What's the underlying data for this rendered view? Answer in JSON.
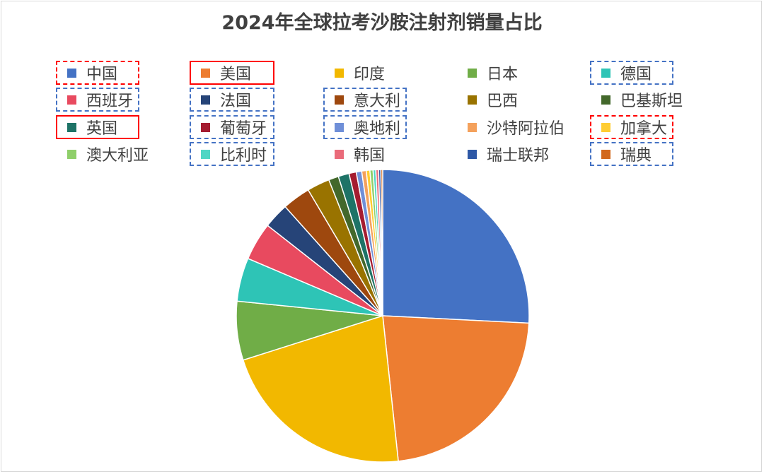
{
  "chart_data": {
    "type": "pie",
    "title": "2024年全球拉考沙胺注射剂销量占比",
    "legend_placement": "top",
    "start_angle": "12 o'clock, clockwise",
    "slices": [
      {
        "label": "中国",
        "value": 25.8,
        "color": "#4472C4",
        "highlight": "red-dashed"
      },
      {
        "label": "美国",
        "value": 22.5,
        "color": "#ED7D31",
        "highlight": "red-solid"
      },
      {
        "label": "印度",
        "value": 21.8,
        "color": "#F2B800",
        "highlight": ""
      },
      {
        "label": "日本",
        "value": 6.5,
        "color": "#70AD47",
        "highlight": ""
      },
      {
        "label": "德国",
        "value": 4.8,
        "color": "#2EC4B6",
        "highlight": "blue-dashed"
      },
      {
        "label": "西班牙",
        "value": 4.2,
        "color": "#E84A5F",
        "highlight": "blue-dashed"
      },
      {
        "label": "法国",
        "value": 2.8,
        "color": "#264478",
        "highlight": "blue-dashed"
      },
      {
        "label": "意大利",
        "value": 3.1,
        "color": "#9E480E",
        "highlight": "blue-dashed"
      },
      {
        "label": "巴西",
        "value": 2.5,
        "color": "#997300",
        "highlight": ""
      },
      {
        "label": "巴基斯坦",
        "value": 1.1,
        "color": "#43682B",
        "highlight": ""
      },
      {
        "label": "英国",
        "value": 1.2,
        "color": "#1E7367",
        "highlight": "red-solid"
      },
      {
        "label": "葡萄牙",
        "value": 0.8,
        "color": "#A51C30",
        "highlight": "blue-dashed"
      },
      {
        "label": "奥地利",
        "value": 0.6,
        "color": "#6F8FD8",
        "highlight": "blue-dashed"
      },
      {
        "label": "沙特阿拉伯",
        "value": 0.5,
        "color": "#F4A15C",
        "highlight": ""
      },
      {
        "label": "加拿大",
        "value": 0.4,
        "color": "#FFCD33",
        "highlight": "red-dashed"
      },
      {
        "label": "澳大利亚",
        "value": 0.35,
        "color": "#8FCF6A",
        "highlight": ""
      },
      {
        "label": "比利时",
        "value": 0.3,
        "color": "#4FD6C4",
        "highlight": "blue-dashed"
      },
      {
        "label": "韩国",
        "value": 0.3,
        "color": "#EA6B7A",
        "highlight": ""
      },
      {
        "label": "瑞士联邦",
        "value": 0.25,
        "color": "#2E58A6",
        "highlight": ""
      },
      {
        "label": "瑞典",
        "value": 0.2,
        "color": "#D2691E",
        "highlight": "blue-dashed"
      }
    ]
  }
}
